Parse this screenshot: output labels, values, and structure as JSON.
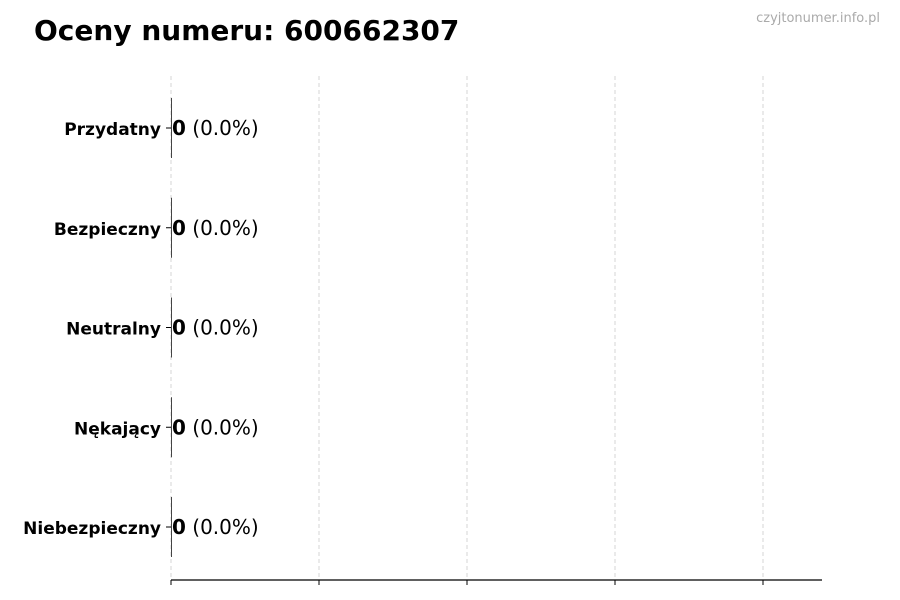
{
  "chart_data": {
    "type": "bar",
    "orientation": "horizontal",
    "title": "Oceny numeru: 600662307",
    "watermark": "czyjtonumer.info.pl",
    "categories": [
      "Przydatny",
      "Bezpieczny",
      "Neutralny",
      "Nękający",
      "Niebezpieczny"
    ],
    "values": [
      0,
      0,
      0,
      0,
      0
    ],
    "value_labels": [
      "0",
      "0",
      "0",
      "0",
      "0"
    ],
    "percent_labels": [
      "(0.0%)",
      "(0.0%)",
      "(0.0%)",
      "(0.0%)",
      "(0.0%)"
    ],
    "xlabel": "",
    "ylabel": "",
    "grid": "vertical dashed",
    "x_tick_labels": "none"
  }
}
